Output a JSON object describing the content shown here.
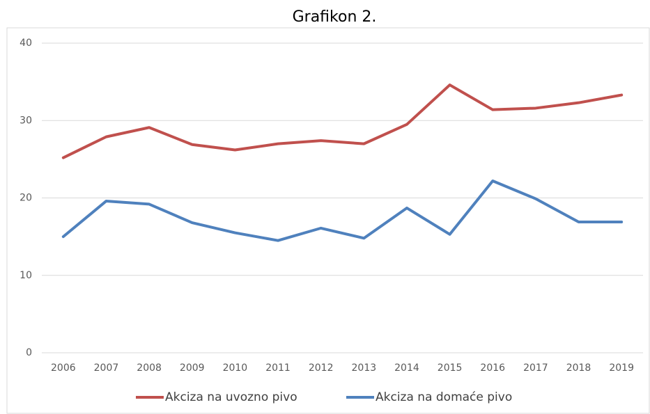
{
  "chart_data": {
    "type": "line",
    "title": "Grafikon 2.",
    "categories": [
      "2006",
      "2007",
      "2008",
      "2009",
      "2010",
      "2011",
      "2012",
      "2013",
      "2014",
      "2015",
      "2016",
      "2017",
      "2018",
      "2019"
    ],
    "series": [
      {
        "name": "Akciza na uvozno pivo",
        "color": "#c0504d",
        "values": [
          25.2,
          27.9,
          29.1,
          26.9,
          26.2,
          27.0,
          27.4,
          27.0,
          29.5,
          34.6,
          31.4,
          31.6,
          32.3,
          33.3
        ]
      },
      {
        "name": "Akciza na domaće pivo",
        "color": "#4f81bd",
        "values": [
          15.0,
          19.6,
          19.2,
          16.8,
          15.5,
          14.5,
          16.1,
          14.8,
          18.7,
          15.3,
          22.2,
          19.9,
          16.9,
          16.9
        ]
      }
    ],
    "ylim": [
      0,
      40
    ],
    "yticks": [
      0,
      10,
      20,
      30,
      40
    ],
    "grid": true,
    "legend": "bottom"
  }
}
